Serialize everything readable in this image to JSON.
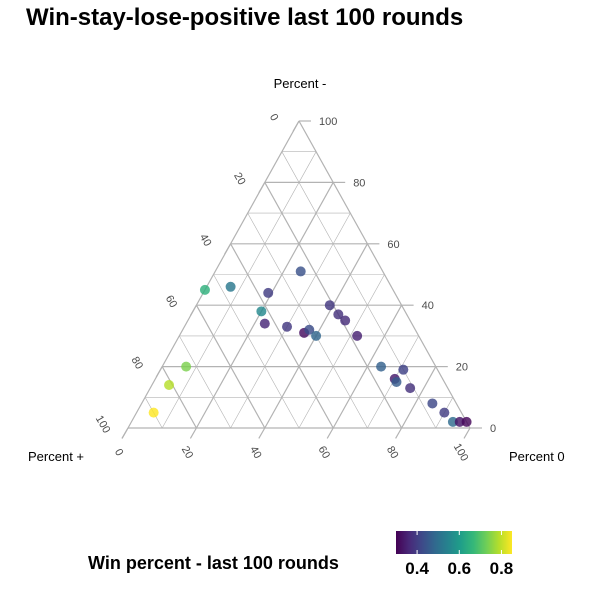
{
  "chart_data": {
    "type": "scatter",
    "subtype": "ternary",
    "title": "Win-stay-lose-positive last 100 rounds",
    "axes": {
      "top": {
        "label": "Percent -"
      },
      "left": {
        "label": "Percent +"
      },
      "right": {
        "label": "Percent 0"
      }
    },
    "ticks": [
      0,
      20,
      40,
      60,
      80,
      100
    ],
    "grid": true,
    "legend": {
      "title": "Win percent - last 100 rounds",
      "position": "bottom",
      "ticks": [
        0.4,
        0.6,
        0.8
      ],
      "labels": [
        "0.4",
        "0.6",
        "0.8"
      ],
      "range": [
        0.3,
        0.85
      ]
    },
    "colorscale": [
      "#440154",
      "#482878",
      "#3e4989",
      "#31688e",
      "#26828e",
      "#1f9e89",
      "#35b779",
      "#6ece58",
      "#b5de2b",
      "#fde725"
    ],
    "points": [
      {
        "plus": 90,
        "minus": 5,
        "zero": 5,
        "win": 0.85
      },
      {
        "plus": 81,
        "minus": 14,
        "zero": 5,
        "win": 0.79
      },
      {
        "plus": 73,
        "minus": 20,
        "zero": 7,
        "win": 0.74
      },
      {
        "plus": 55,
        "minus": 45,
        "zero": 0,
        "win": 0.65
      },
      {
        "plus": 47,
        "minus": 46,
        "zero": 7,
        "win": 0.52
      },
      {
        "plus": 42,
        "minus": 38,
        "zero": 20,
        "win": 0.56
      },
      {
        "plus": 43,
        "minus": 34,
        "zero": 23,
        "win": 0.36
      },
      {
        "plus": 37,
        "minus": 44,
        "zero": 19,
        "win": 0.4
      },
      {
        "plus": 37,
        "minus": 33,
        "zero": 30,
        "win": 0.39
      },
      {
        "plus": 33,
        "minus": 31,
        "zero": 36,
        "win": 0.32
      },
      {
        "plus": 31,
        "minus": 32,
        "zero": 37,
        "win": 0.43
      },
      {
        "plus": 30,
        "minus": 30,
        "zero": 40,
        "win": 0.48
      },
      {
        "plus": 24,
        "minus": 51,
        "zero": 25,
        "win": 0.44
      },
      {
        "plus": 21,
        "minus": 40,
        "zero": 39,
        "win": 0.39
      },
      {
        "plus": 20,
        "minus": 37,
        "zero": 43,
        "win": 0.38
      },
      {
        "plus": 19,
        "minus": 35,
        "zero": 46,
        "win": 0.37
      },
      {
        "plus": 18,
        "minus": 30,
        "zero": 52,
        "win": 0.35
      },
      {
        "plus": 16,
        "minus": 20,
        "zero": 64,
        "win": 0.47
      },
      {
        "plus": 14,
        "minus": 16,
        "zero": 70,
        "win": 0.34
      },
      {
        "plus": 14,
        "minus": 15,
        "zero": 71,
        "win": 0.46
      },
      {
        "plus": 10,
        "minus": 19,
        "zero": 71,
        "win": 0.41
      },
      {
        "plus": 11,
        "minus": 13,
        "zero": 76,
        "win": 0.38
      },
      {
        "plus": 7,
        "minus": 8,
        "zero": 85,
        "win": 0.42
      },
      {
        "plus": 5,
        "minus": 5,
        "zero": 90,
        "win": 0.4
      },
      {
        "plus": 4,
        "minus": 2,
        "zero": 94,
        "win": 0.49
      },
      {
        "plus": 2,
        "minus": 2,
        "zero": 96,
        "win": 0.33
      },
      {
        "plus": 0,
        "minus": 2,
        "zero": 98,
        "win": 0.31
      }
    ]
  }
}
